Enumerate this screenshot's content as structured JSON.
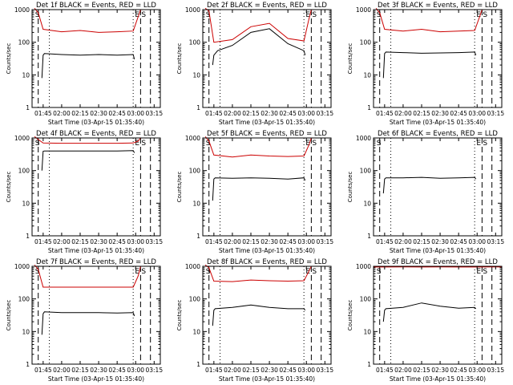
{
  "colors": {
    "events": "#000000",
    "lld": "#cc0000",
    "axis": "#000000",
    "background": "#ffffff"
  },
  "shared": {
    "ylabel": "Counts/sec",
    "xlabel": "Start Time (03-Apr-15 01:35:40)",
    "xticks": [
      "01:45",
      "02:00",
      "02:15",
      "02:30",
      "02:45",
      "03:00",
      "03:15"
    ],
    "yticks": [
      "1",
      "10",
      "100",
      "1000"
    ],
    "markers": {
      "start_label": "S",
      "intermediate_label": "I",
      "end_label": "E"
    }
  },
  "chart_data": [
    {
      "type": "line",
      "detector": "1f",
      "title": "Det 1f BLACK = Events, RED = LLD",
      "xlim": [
        "01:36",
        "03:20"
      ],
      "ylim": [
        1,
        1000
      ],
      "yscale": "log",
      "grid": false,
      "vlines_dashed": [
        "01:41",
        "03:04",
        "03:12"
      ],
      "vlines_dotted": [
        "01:50",
        "02:58"
      ],
      "series": [
        {
          "name": "RED = LLD",
          "x": [
            "01:38",
            "01:41",
            "01:45",
            "02:00",
            "02:15",
            "02:30",
            "02:45",
            "02:58",
            "03:02",
            "03:04"
          ],
          "y": [
            1100,
            800,
            250,
            210,
            230,
            200,
            210,
            220,
            600,
            1000
          ]
        },
        {
          "name": "BLACK = Events",
          "x": [
            "01:44",
            "01:45",
            "01:46",
            "02:00",
            "02:15",
            "02:30",
            "02:45",
            "02:58",
            "02:59"
          ],
          "y": [
            8,
            40,
            45,
            42,
            40,
            42,
            40,
            42,
            30
          ]
        }
      ]
    },
    {
      "type": "line",
      "detector": "2f",
      "title": "Det 2f BLACK = Events, RED = LLD",
      "xlim": [
        "01:36",
        "03:20"
      ],
      "ylim": [
        1,
        1000
      ],
      "yscale": "log",
      "grid": false,
      "vlines_dashed": [
        "01:41",
        "03:04",
        "03:12"
      ],
      "vlines_dotted": [
        "01:50",
        "02:58"
      ],
      "series": [
        {
          "name": "RED = LLD",
          "x": [
            "01:38",
            "01:41",
            "01:45",
            "02:00",
            "02:15",
            "02:30",
            "02:45",
            "02:58",
            "03:02",
            "03:04"
          ],
          "y": [
            1100,
            900,
            100,
            120,
            300,
            380,
            130,
            110,
            500,
            1000
          ]
        },
        {
          "name": "BLACK = Events",
          "x": [
            "01:44",
            "01:45",
            "01:48",
            "02:00",
            "02:15",
            "02:30",
            "02:45",
            "02:58",
            "02:59"
          ],
          "y": [
            20,
            40,
            55,
            80,
            200,
            260,
            90,
            55,
            40
          ]
        }
      ]
    },
    {
      "type": "line",
      "detector": "3f",
      "title": "Det 3f BLACK = Events, RED = LLD",
      "xlim": [
        "01:36",
        "03:20"
      ],
      "ylim": [
        1,
        1000
      ],
      "yscale": "log",
      "grid": false,
      "vlines_dashed": [
        "01:41",
        "03:04",
        "03:12"
      ],
      "vlines_dotted": [
        "01:50",
        "02:58"
      ],
      "series": [
        {
          "name": "RED = LLD",
          "x": [
            "01:38",
            "01:41",
            "01:45",
            "02:00",
            "02:15",
            "02:30",
            "02:45",
            "02:58",
            "03:02",
            "03:04"
          ],
          "y": [
            1100,
            800,
            250,
            220,
            250,
            210,
            220,
            230,
            600,
            1000
          ]
        },
        {
          "name": "BLACK = Events",
          "x": [
            "01:44",
            "01:45",
            "01:46",
            "02:00",
            "02:15",
            "02:30",
            "02:45",
            "02:58",
            "02:59"
          ],
          "y": [
            8,
            45,
            50,
            48,
            46,
            47,
            48,
            50,
            40
          ]
        }
      ]
    },
    {
      "type": "line",
      "detector": "4f",
      "title": "Det 4f BLACK = Events, RED = LLD",
      "xlim": [
        "01:36",
        "03:20"
      ],
      "ylim": [
        1,
        1000
      ],
      "yscale": "log",
      "grid": false,
      "vlines_dashed": [
        "01:41",
        "03:04",
        "03:12"
      ],
      "vlines_dotted": [
        "01:50",
        "02:58"
      ],
      "series": [
        {
          "name": "RED = LLD",
          "x": [
            "01:38",
            "01:41",
            "01:45",
            "02:00",
            "02:15",
            "02:30",
            "02:45",
            "02:58",
            "03:02",
            "03:04"
          ],
          "y": [
            1100,
            900,
            700,
            690,
            690,
            690,
            690,
            700,
            800,
            1000
          ]
        },
        {
          "name": "BLACK = Events",
          "x": [
            "01:44",
            "01:45",
            "01:46",
            "02:00",
            "02:15",
            "02:30",
            "02:45",
            "02:58",
            "02:59"
          ],
          "y": [
            100,
            390,
            400,
            400,
            400,
            400,
            400,
            410,
            350
          ]
        }
      ]
    },
    {
      "type": "line",
      "detector": "5f",
      "title": "Det 5f BLACK = Events, RED = LLD",
      "xlim": [
        "01:36",
        "03:20"
      ],
      "ylim": [
        1,
        1000
      ],
      "yscale": "log",
      "grid": false,
      "vlines_dashed": [
        "01:41",
        "03:04",
        "03:12"
      ],
      "vlines_dotted": [
        "01:50",
        "02:58"
      ],
      "series": [
        {
          "name": "RED = LLD",
          "x": [
            "01:38",
            "01:41",
            "01:45",
            "02:00",
            "02:15",
            "02:30",
            "02:45",
            "02:58",
            "03:02",
            "03:04"
          ],
          "y": [
            1100,
            800,
            300,
            260,
            300,
            280,
            270,
            280,
            600,
            1000
          ]
        },
        {
          "name": "BLACK = Events",
          "x": [
            "01:44",
            "01:45",
            "01:46",
            "02:00",
            "02:15",
            "02:30",
            "02:45",
            "02:58",
            "02:59"
          ],
          "y": [
            12,
            55,
            60,
            58,
            60,
            58,
            55,
            60,
            50
          ]
        }
      ]
    },
    {
      "type": "line",
      "detector": "6f",
      "title": "Det 6f BLACK = Events, RED = LLD",
      "xlim": [
        "01:36",
        "03:20"
      ],
      "ylim": [
        1,
        1000
      ],
      "yscale": "log",
      "grid": false,
      "vlines_dashed": [
        "01:41",
        "03:04",
        "03:12"
      ],
      "vlines_dotted": [
        "01:50",
        "02:58"
      ],
      "series": [
        {
          "name": "BLACK = Events",
          "x": [
            "01:44",
            "01:45",
            "01:46",
            "02:00",
            "02:15",
            "02:30",
            "02:45",
            "02:58",
            "02:59"
          ],
          "y": [
            20,
            55,
            60,
            60,
            62,
            58,
            60,
            62,
            55
          ]
        }
      ]
    },
    {
      "type": "line",
      "detector": "7f",
      "title": "Det 7f BLACK = Events, RED = LLD",
      "xlim": [
        "01:36",
        "03:20"
      ],
      "ylim": [
        1,
        1000
      ],
      "yscale": "log",
      "grid": false,
      "vlines_dashed": [
        "01:41",
        "03:04",
        "03:12"
      ],
      "vlines_dotted": [
        "01:50",
        "02:58"
      ],
      "series": [
        {
          "name": "RED = LLD",
          "x": [
            "01:38",
            "01:41",
            "01:45",
            "02:00",
            "02:15",
            "02:30",
            "02:45",
            "02:58",
            "03:02",
            "03:04"
          ],
          "y": [
            1100,
            800,
            230,
            230,
            230,
            230,
            230,
            230,
            500,
            1000
          ]
        },
        {
          "name": "BLACK = Events",
          "x": [
            "01:44",
            "01:45",
            "01:46",
            "02:00",
            "02:15",
            "02:30",
            "02:45",
            "02:58",
            "02:59"
          ],
          "y": [
            8,
            35,
            40,
            38,
            38,
            38,
            37,
            38,
            30
          ]
        }
      ]
    },
    {
      "type": "line",
      "detector": "8f",
      "title": "Det 8f BLACK = Events, RED = LLD",
      "xlim": [
        "01:36",
        "03:20"
      ],
      "ylim": [
        1,
        1000
      ],
      "yscale": "log",
      "grid": false,
      "vlines_dashed": [
        "01:41",
        "03:04",
        "03:12"
      ],
      "vlines_dotted": [
        "01:50",
        "02:58"
      ],
      "series": [
        {
          "name": "RED = LLD",
          "x": [
            "01:38",
            "01:41",
            "01:45",
            "02:00",
            "02:15",
            "02:30",
            "02:45",
            "02:58",
            "03:02",
            "03:04"
          ],
          "y": [
            1100,
            900,
            350,
            340,
            380,
            360,
            350,
            360,
            700,
            1000
          ]
        },
        {
          "name": "BLACK = Events",
          "x": [
            "01:44",
            "01:45",
            "01:46",
            "02:00",
            "02:15",
            "02:30",
            "02:45",
            "02:58",
            "02:59"
          ],
          "y": [
            15,
            45,
            50,
            55,
            65,
            55,
            50,
            50,
            45
          ]
        }
      ]
    },
    {
      "type": "line",
      "detector": "9f",
      "title": "Det 9f BLACK = Events, RED = LLD",
      "xlim": [
        "01:36",
        "03:20"
      ],
      "ylim": [
        1,
        1000
      ],
      "yscale": "log",
      "grid": false,
      "vlines_dashed": [
        "01:41",
        "03:04",
        "03:12"
      ],
      "vlines_dotted": [
        "01:50",
        "02:58"
      ],
      "series": [
        {
          "name": "RED = LLD",
          "x": [
            "01:36",
            "01:45",
            "02:00",
            "02:15",
            "02:30",
            "02:45",
            "03:00",
            "03:15",
            "03:20"
          ],
          "y": [
            950,
            950,
            960,
            950,
            955,
            950,
            950,
            955,
            950
          ]
        },
        {
          "name": "BLACK = Events",
          "x": [
            "01:44",
            "01:45",
            "01:46",
            "02:00",
            "02:15",
            "02:30",
            "02:45",
            "02:58",
            "02:59"
          ],
          "y": [
            20,
            45,
            50,
            55,
            75,
            60,
            52,
            55,
            50
          ]
        }
      ]
    }
  ]
}
